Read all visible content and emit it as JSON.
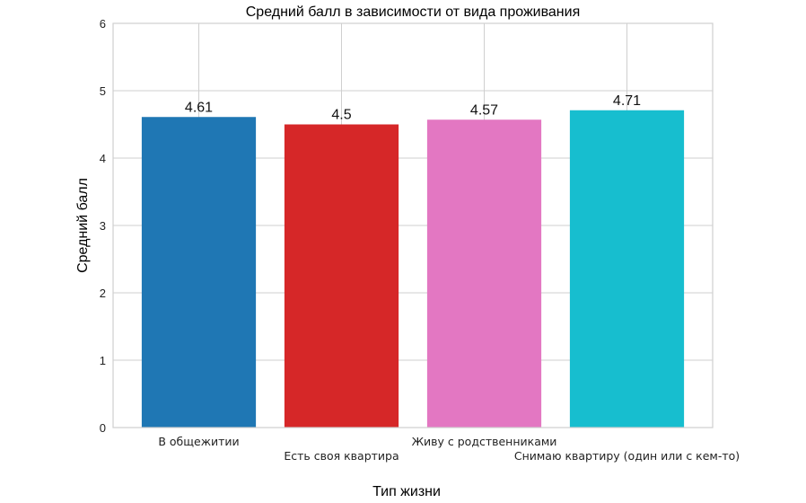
{
  "chart_data": {
    "type": "bar",
    "title": "Средний балл в зависимости от вида проживания",
    "xlabel": "Тип жизни",
    "ylabel": "Средний балл",
    "ylim": [
      0,
      6
    ],
    "yticks": [
      "0",
      "1",
      "2",
      "3",
      "4",
      "5",
      "6"
    ],
    "grid": true,
    "categories": [
      "В общежитии",
      "Есть своя квартира",
      "Живу с родственниками",
      "Снимаю квартиру (один или с кем-то)"
    ],
    "values": [
      4.61,
      4.5,
      4.57,
      4.71
    ],
    "value_labels": [
      "4.61",
      "4.5",
      "4.57",
      "4.71"
    ],
    "colors": [
      "#1f77b4",
      "#d62728",
      "#e377c2",
      "#17becf"
    ]
  }
}
